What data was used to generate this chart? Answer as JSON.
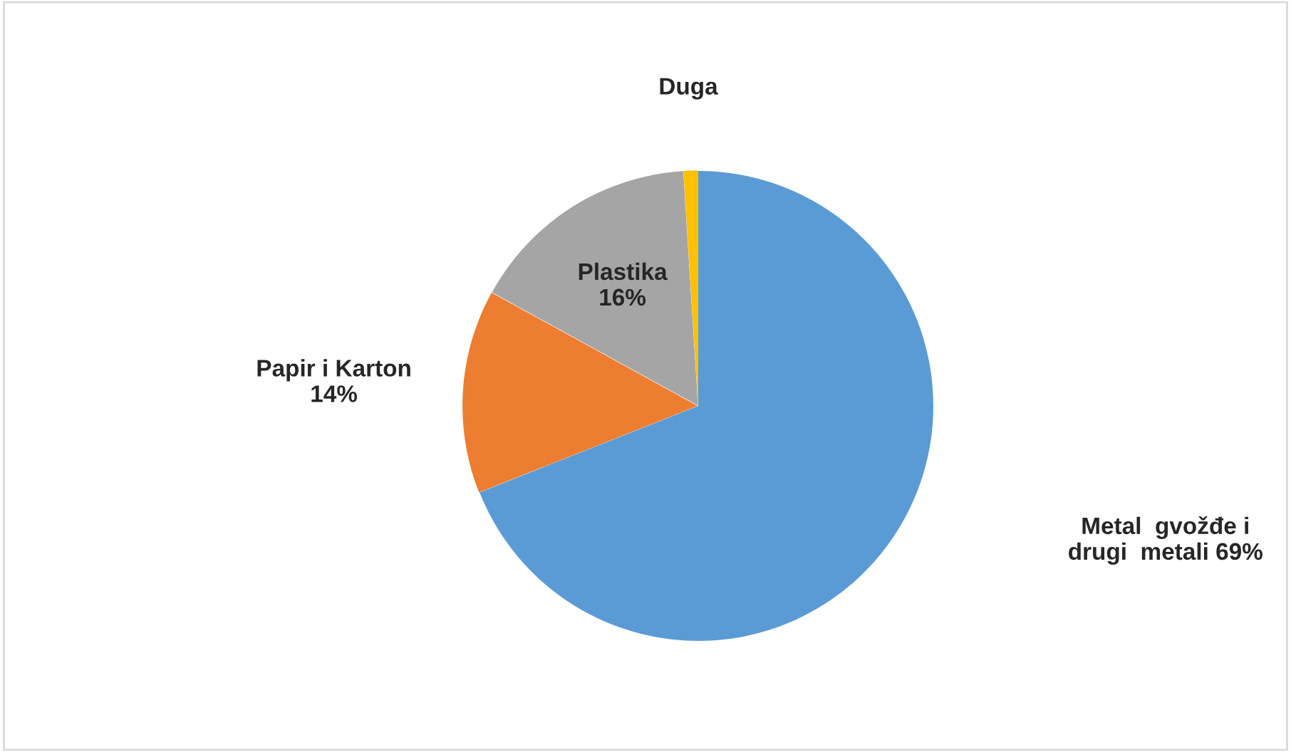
{
  "chart_data": {
    "type": "pie",
    "categories": [
      "Metal  gvožđe i\ndrugi  metali",
      "Papir i Karton",
      "Plastika",
      "Duga"
    ],
    "values": [
      69,
      14,
      16,
      1
    ],
    "value_labels": [
      "69%",
      "14%",
      "16%",
      null
    ],
    "colors": [
      "#5b9bd5",
      "#ed7d31",
      "#a5a5a5",
      "#ffc000"
    ]
  }
}
